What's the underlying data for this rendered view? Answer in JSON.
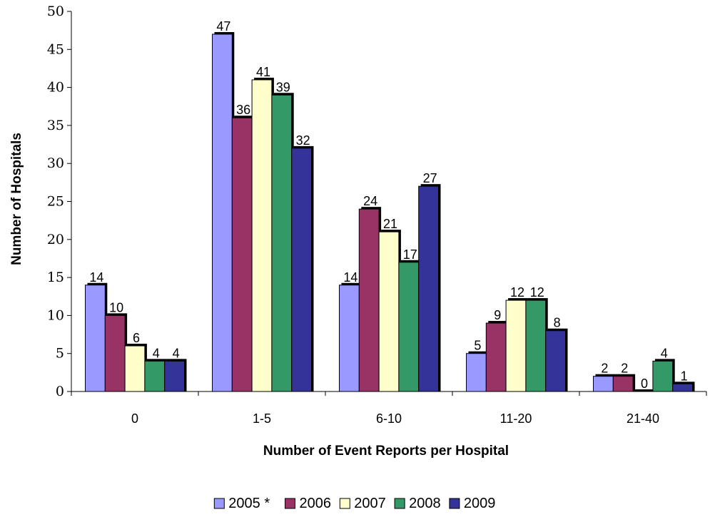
{
  "chart_data": {
    "type": "bar",
    "title": "",
    "xlabel": "Number of Event Reports per Hospital",
    "ylabel": "Number of Hospitals",
    "categories": [
      "0",
      "1-5",
      "6-10",
      "11-20",
      "21-40"
    ],
    "ylim": [
      0,
      50
    ],
    "ytick_step": 5,
    "grid": false,
    "legend_position": "bottom",
    "series": [
      {
        "name": "2005 *",
        "color": "#9999FF",
        "values": [
          14,
          47,
          14,
          5,
          2
        ]
      },
      {
        "name": "2006",
        "color": "#993366",
        "values": [
          10,
          36,
          24,
          9,
          2
        ]
      },
      {
        "name": "2007",
        "color": "#FFFFCC",
        "values": [
          6,
          41,
          21,
          12,
          0
        ]
      },
      {
        "name": "2008",
        "color": "#339966",
        "values": [
          4,
          39,
          17,
          12,
          4
        ]
      },
      {
        "name": "2009",
        "color": "#333399",
        "values": [
          4,
          32,
          27,
          8,
          1
        ]
      }
    ]
  }
}
